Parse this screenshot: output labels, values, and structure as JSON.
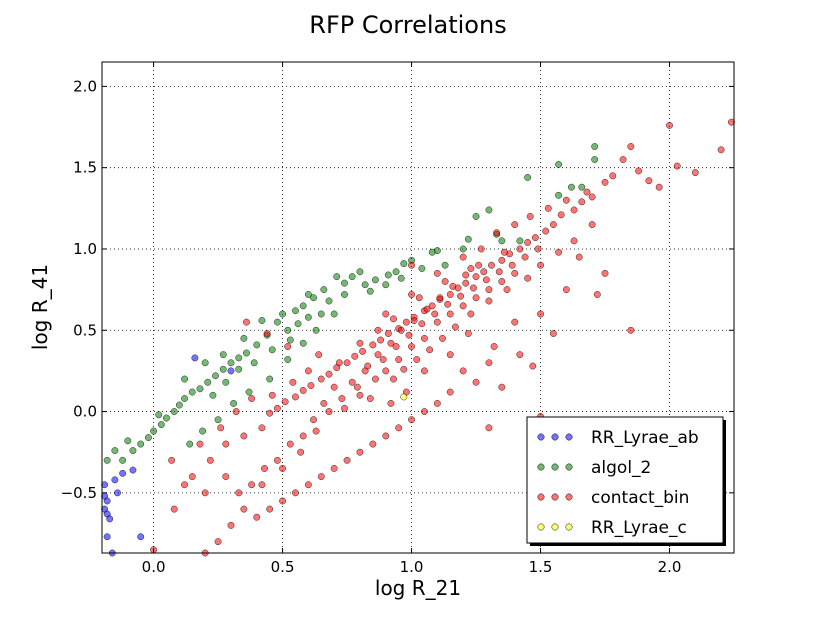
{
  "chart_data": {
    "type": "scatter",
    "title": "RFP Correlations",
    "xlabel": "log R_21",
    "ylabel": "log R_41",
    "xlim": [
      -0.2,
      2.25
    ],
    "ylim": [
      -0.87,
      2.15
    ],
    "x_ticks": [
      0.0,
      0.5,
      1.0,
      1.5,
      2.0
    ],
    "x_tick_labels": [
      "0.0",
      "0.5",
      "1.0",
      "1.5",
      "2.0"
    ],
    "y_ticks": [
      -0.5,
      0.0,
      0.5,
      1.0,
      1.5,
      2.0
    ],
    "y_tick_labels": [
      "−0.5",
      "0.0",
      "0.5",
      "1.0",
      "1.5",
      "2.0"
    ],
    "grid": true,
    "legend_position": "lower-right",
    "series": [
      {
        "name": "RR_Lyrae_ab",
        "color": "#0000ff",
        "points": [
          [
            0.16,
            0.33
          ],
          [
            0.3,
            0.25
          ],
          [
            -0.08,
            -0.36
          ],
          [
            -0.12,
            -0.38
          ],
          [
            -0.15,
            -0.42
          ],
          [
            -0.19,
            -0.52
          ],
          [
            -0.18,
            -0.55
          ],
          [
            -0.19,
            -0.6
          ],
          [
            -0.18,
            -0.63
          ],
          [
            -0.17,
            -0.66
          ],
          [
            -0.18,
            -0.77
          ],
          [
            -0.16,
            -0.87
          ],
          [
            -0.05,
            -0.77
          ],
          [
            -0.14,
            -0.5
          ],
          [
            -0.19,
            -0.45
          ]
        ]
      },
      {
        "name": "algol_2",
        "color": "#008000",
        "points": [
          [
            1.71,
            1.63
          ],
          [
            1.71,
            1.55
          ],
          [
            1.57,
            1.52
          ],
          [
            1.45,
            1.44
          ],
          [
            1.62,
            1.38
          ],
          [
            1.66,
            1.38
          ],
          [
            1.57,
            1.33
          ],
          [
            1.3,
            1.24
          ],
          [
            1.25,
            1.2
          ],
          [
            1.42,
            1.05
          ],
          [
            1.2,
            1.0
          ],
          [
            1.22,
            1.06
          ],
          [
            1.33,
            1.09
          ],
          [
            1.35,
            1.05
          ],
          [
            1.1,
            0.99
          ],
          [
            1.08,
            0.98
          ],
          [
            1.13,
            0.9
          ],
          [
            1.0,
            0.93
          ],
          [
            1.04,
            0.88
          ],
          [
            0.97,
            0.91
          ],
          [
            0.94,
            0.86
          ],
          [
            0.91,
            0.84
          ],
          [
            0.86,
            0.81
          ],
          [
            0.82,
            0.78
          ],
          [
            0.8,
            0.86
          ],
          [
            0.77,
            0.83
          ],
          [
            0.74,
            0.79
          ],
          [
            0.71,
            0.83
          ],
          [
            0.66,
            0.75
          ],
          [
            0.62,
            0.7
          ],
          [
            0.58,
            0.65
          ],
          [
            0.65,
            0.6
          ],
          [
            0.6,
            0.58
          ],
          [
            0.56,
            0.54
          ],
          [
            0.52,
            0.5
          ],
          [
            0.48,
            0.55
          ],
          [
            0.44,
            0.47
          ],
          [
            0.4,
            0.41
          ],
          [
            0.36,
            0.36
          ],
          [
            0.33,
            0.33
          ],
          [
            0.3,
            0.3
          ],
          [
            0.27,
            0.26
          ],
          [
            0.24,
            0.22
          ],
          [
            0.21,
            0.18
          ],
          [
            0.18,
            0.14
          ],
          [
            0.15,
            0.12
          ],
          [
            0.12,
            0.08
          ],
          [
            0.1,
            0.04
          ],
          [
            0.08,
            0.0
          ],
          [
            0.05,
            -0.04
          ],
          [
            0.03,
            -0.08
          ],
          [
            0.0,
            -0.12
          ],
          [
            -0.02,
            -0.16
          ],
          [
            -0.05,
            -0.2
          ],
          [
            -0.08,
            -0.24
          ],
          [
            -0.12,
            -0.3
          ],
          [
            -0.15,
            -0.24
          ],
          [
            -0.18,
            -0.3
          ],
          [
            -0.1,
            -0.18
          ],
          [
            0.02,
            -0.02
          ],
          [
            0.12,
            0.2
          ],
          [
            0.2,
            0.3
          ],
          [
            0.27,
            0.35
          ],
          [
            0.35,
            0.45
          ],
          [
            0.42,
            0.56
          ],
          [
            0.5,
            0.6
          ],
          [
            0.55,
            0.62
          ],
          [
            0.6,
            0.72
          ],
          [
            0.68,
            0.68
          ],
          [
            0.74,
            0.72
          ],
          [
            0.84,
            0.74
          ],
          [
            0.9,
            0.78
          ],
          [
            0.96,
            0.82
          ],
          [
            0.14,
            -0.2
          ],
          [
            0.19,
            -0.12
          ],
          [
            0.25,
            -0.05
          ],
          [
            0.31,
            0.05
          ],
          [
            0.37,
            0.12
          ],
          [
            0.45,
            0.2
          ],
          [
            0.52,
            0.32
          ],
          [
            0.58,
            0.42
          ],
          [
            0.63,
            0.5
          ],
          [
            0.7,
            0.6
          ],
          [
            0.23,
            0.1
          ],
          [
            0.28,
            0.18
          ],
          [
            0.33,
            0.26
          ],
          [
            0.39,
            0.3
          ],
          [
            0.46,
            0.38
          ],
          [
            0.53,
            0.44
          ]
        ]
      },
      {
        "name": "contact_bin",
        "color": "#ff0000",
        "points": [
          [
            2.24,
            1.78
          ],
          [
            2.2,
            1.61
          ],
          [
            2.0,
            1.76
          ],
          [
            2.03,
            1.51
          ],
          [
            2.1,
            1.47
          ],
          [
            1.85,
            1.63
          ],
          [
            1.82,
            1.55
          ],
          [
            1.88,
            1.48
          ],
          [
            1.92,
            1.42
          ],
          [
            1.96,
            1.38
          ],
          [
            1.78,
            1.45
          ],
          [
            1.75,
            1.41
          ],
          [
            1.7,
            1.32
          ],
          [
            1.66,
            1.29
          ],
          [
            1.63,
            1.24
          ],
          [
            1.58,
            1.21
          ],
          [
            1.55,
            1.15
          ],
          [
            1.52,
            1.11
          ],
          [
            1.48,
            1.07
          ],
          [
            1.45,
            1.04
          ],
          [
            1.42,
            1.0
          ],
          [
            1.38,
            0.97
          ],
          [
            1.35,
            0.93
          ],
          [
            1.31,
            0.9
          ],
          [
            1.28,
            0.86
          ],
          [
            1.25,
            0.83
          ],
          [
            1.21,
            0.79
          ],
          [
            1.18,
            0.76
          ],
          [
            1.15,
            0.72
          ],
          [
            1.11,
            0.69
          ],
          [
            1.08,
            0.65
          ],
          [
            1.05,
            0.62
          ],
          [
            1.01,
            0.58
          ],
          [
            0.98,
            0.55
          ],
          [
            0.95,
            0.51
          ],
          [
            0.91,
            0.48
          ],
          [
            0.88,
            0.44
          ],
          [
            0.85,
            0.41
          ],
          [
            0.81,
            0.37
          ],
          [
            0.78,
            0.34
          ],
          [
            0.75,
            0.3
          ],
          [
            0.71,
            0.27
          ],
          [
            0.68,
            0.23
          ],
          [
            0.65,
            0.2
          ],
          [
            0.61,
            0.16
          ],
          [
            0.58,
            0.13
          ],
          [
            0.55,
            0.09
          ],
          [
            0.51,
            0.06
          ],
          [
            0.48,
            0.02
          ],
          [
            0.45,
            -0.01
          ],
          [
            1.85,
            0.5
          ],
          [
            1.65,
            0.95
          ],
          [
            1.6,
            0.75
          ],
          [
            1.5,
            0.6
          ],
          [
            1.75,
            0.85
          ],
          [
            1.72,
            0.72
          ],
          [
            1.55,
            0.48
          ],
          [
            1.4,
            0.55
          ],
          [
            1.47,
            0.28
          ],
          [
            1.5,
            -0.03
          ],
          [
            1.42,
            0.35
          ],
          [
            1.32,
            0.4
          ],
          [
            1.3,
            0.3
          ],
          [
            1.25,
            0.18
          ],
          [
            1.2,
            0.25
          ],
          [
            1.15,
            0.12
          ],
          [
            1.1,
            0.05
          ],
          [
            1.05,
            0.0
          ],
          [
            1.0,
            -0.05
          ],
          [
            0.95,
            -0.1
          ],
          [
            0.9,
            -0.15
          ],
          [
            0.85,
            -0.2
          ],
          [
            0.8,
            -0.25
          ],
          [
            0.75,
            -0.3
          ],
          [
            0.7,
            -0.35
          ],
          [
            0.65,
            -0.4
          ],
          [
            0.6,
            -0.45
          ],
          [
            0.55,
            -0.5
          ],
          [
            0.5,
            -0.55
          ],
          [
            0.45,
            -0.6
          ],
          [
            0.4,
            -0.65
          ],
          [
            0.3,
            -0.7
          ],
          [
            0.25,
            -0.8
          ],
          [
            0.2,
            -0.87
          ],
          [
            0.0,
            -0.85
          ],
          [
            0.08,
            -0.6
          ],
          [
            0.15,
            -0.4
          ],
          [
            0.22,
            -0.3
          ],
          [
            0.28,
            -0.2
          ],
          [
            0.35,
            -0.15
          ],
          [
            0.42,
            -0.1
          ],
          [
            1.3,
            -0.1
          ],
          [
            1.35,
            0.15
          ],
          [
            1.22,
            0.48
          ],
          [
            1.15,
            0.35
          ],
          [
            1.05,
            0.25
          ],
          [
            0.98,
            0.12
          ],
          [
            0.92,
            0.05
          ],
          [
            0.86,
            0.2
          ],
          [
            0.8,
            0.1
          ],
          [
            0.74,
            0.02
          ],
          [
            0.7,
            0.15
          ],
          [
            0.66,
            0.05
          ],
          [
            0.62,
            -0.05
          ],
          [
            0.58,
            -0.15
          ],
          [
            0.53,
            -0.2
          ],
          [
            0.48,
            -0.3
          ],
          [
            0.43,
            -0.35
          ],
          [
            0.38,
            -0.45
          ],
          [
            0.33,
            -0.5
          ],
          [
            0.36,
            0.55
          ],
          [
            0.44,
            0.48
          ],
          [
            0.52,
            0.4
          ],
          [
            1.0,
            0.9
          ],
          [
            1.1,
            0.85
          ],
          [
            1.2,
            0.95
          ],
          [
            1.27,
            1.0
          ],
          [
            1.33,
            1.1
          ],
          [
            1.4,
            1.15
          ],
          [
            1.46,
            1.2
          ],
          [
            1.53,
            1.25
          ],
          [
            1.6,
            1.3
          ],
          [
            1.68,
            1.35
          ],
          [
            1.7,
            1.15
          ],
          [
            1.63,
            1.05
          ],
          [
            1.57,
            0.98
          ],
          [
            1.5,
            0.9
          ],
          [
            1.45,
            0.82
          ],
          [
            1.37,
            0.75
          ],
          [
            1.3,
            0.68
          ],
          [
            1.23,
            0.6
          ],
          [
            1.17,
            0.52
          ],
          [
            1.12,
            0.45
          ],
          [
            1.07,
            0.38
          ],
          [
            1.02,
            0.32
          ],
          [
            0.97,
            0.26
          ],
          [
            0.93,
            0.2
          ],
          [
            0.89,
            0.32
          ],
          [
            0.94,
            0.4
          ],
          [
            0.99,
            0.47
          ],
          [
            1.04,
            0.54
          ],
          [
            1.09,
            0.6
          ],
          [
            1.14,
            0.66
          ],
          [
            1.19,
            0.71
          ],
          [
            1.24,
            0.76
          ],
          [
            1.29,
            0.81
          ],
          [
            1.34,
            0.86
          ],
          [
            1.39,
            0.9
          ],
          [
            1.44,
            0.95
          ],
          [
            1.49,
            1.0
          ],
          [
            0.83,
            0.28
          ],
          [
            0.87,
            0.35
          ],
          [
            0.92,
            0.42
          ],
          [
            0.96,
            0.5
          ],
          [
            1.01,
            0.56
          ],
          [
            1.06,
            0.63
          ],
          [
            1.11,
            0.7
          ],
          [
            1.16,
            0.77
          ],
          [
            1.21,
            0.84
          ],
          [
            1.26,
            0.9
          ],
          [
            0.77,
            0.18
          ],
          [
            0.82,
            0.25
          ],
          [
            0.87,
            0.5
          ],
          [
            0.93,
            0.57
          ],
          [
            1.03,
            0.7
          ],
          [
            1.13,
            0.8
          ],
          [
            1.23,
            0.88
          ],
          [
            1.36,
            0.98
          ],
          [
            0.72,
            0.3
          ],
          [
            0.8,
            0.42
          ],
          [
            0.9,
            0.6
          ],
          [
            1.0,
            0.72
          ],
          [
            0.73,
            0.08
          ],
          [
            0.79,
            0.15
          ],
          [
            0.84,
            0.08
          ],
          [
            0.9,
            0.25
          ],
          [
            0.95,
            0.32
          ],
          [
            1.0,
            0.4
          ],
          [
            1.05,
            0.45
          ],
          [
            1.1,
            0.55
          ],
          [
            1.15,
            0.6
          ],
          [
            1.2,
            0.65
          ],
          [
            1.25,
            0.7
          ],
          [
            1.3,
            0.75
          ],
          [
            1.35,
            0.8
          ],
          [
            1.4,
            0.85
          ],
          [
            0.68,
            0.0
          ],
          [
            0.63,
            -0.12
          ],
          [
            0.57,
            -0.25
          ],
          [
            0.5,
            -0.35
          ],
          [
            0.42,
            -0.45
          ],
          [
            0.35,
            -0.6
          ],
          [
            0.28,
            -0.4
          ],
          [
            0.2,
            -0.5
          ],
          [
            0.12,
            -0.45
          ],
          [
            0.07,
            -0.3
          ],
          [
            0.18,
            -0.2
          ],
          [
            0.26,
            -0.1
          ],
          [
            0.32,
            0.0
          ],
          [
            0.38,
            0.08
          ],
          [
            0.46,
            0.1
          ],
          [
            0.54,
            0.18
          ],
          [
            0.6,
            0.25
          ],
          [
            0.64,
            0.35
          ]
        ]
      },
      {
        "name": "RR_Lyrae_c",
        "color": "#ffff00",
        "points": [
          [
            0.97,
            0.09
          ]
        ]
      }
    ]
  }
}
